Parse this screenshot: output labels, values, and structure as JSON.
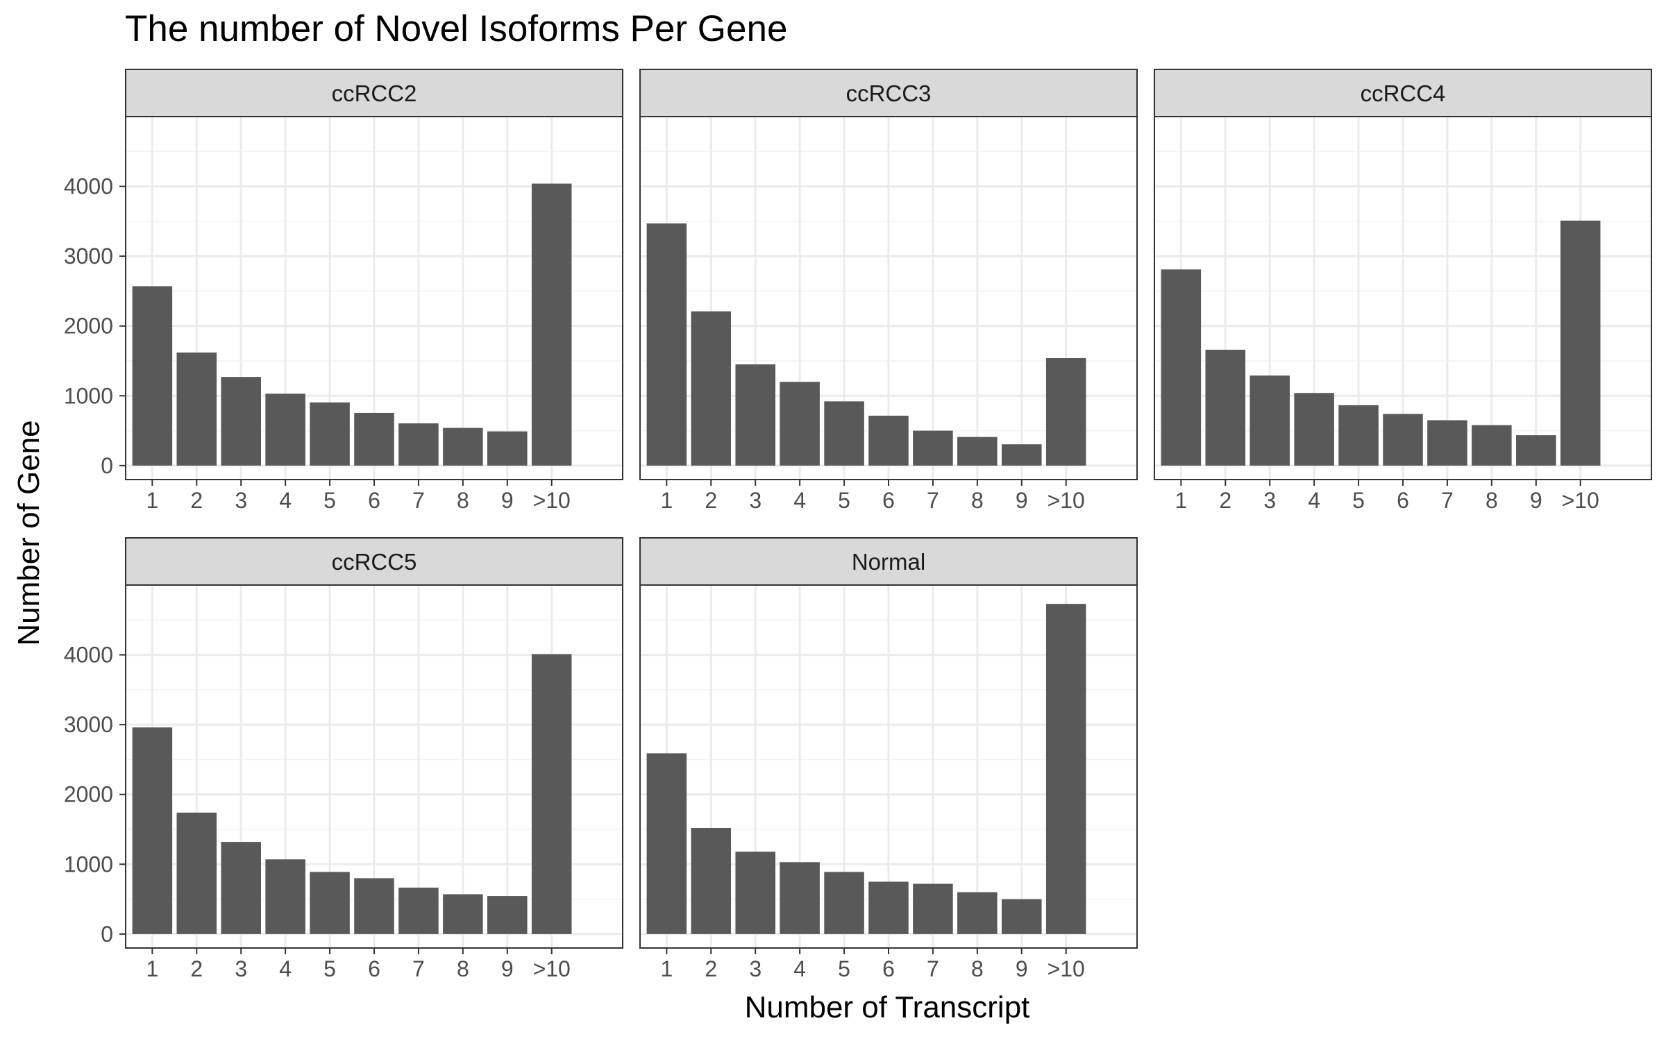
{
  "chart_data": {
    "type": "bar",
    "title": "The number of Novel Isoforms Per Gene",
    "xlabel": "Number of Transcript",
    "ylabel": "Number of Gene",
    "categories": [
      "1",
      "2",
      "3",
      "4",
      "5",
      "6",
      "7",
      "8",
      "9",
      ">10"
    ],
    "ylim": [
      -200,
      5000
    ],
    "yticks": [
      0,
      1000,
      2000,
      3000,
      4000
    ],
    "grid": true,
    "bar_color": "#595959",
    "strip_color": "#d9d9d9",
    "panels": [
      {
        "name": "ccRCC2",
        "values": [
          2570,
          1620,
          1270,
          1030,
          905,
          755,
          605,
          540,
          490,
          4040
        ]
      },
      {
        "name": "ccRCC3",
        "values": [
          3470,
          2210,
          1450,
          1200,
          920,
          715,
          500,
          410,
          305,
          1540
        ]
      },
      {
        "name": "ccRCC4",
        "values": [
          2810,
          1660,
          1290,
          1040,
          865,
          740,
          650,
          580,
          435,
          3510
        ]
      },
      {
        "name": "ccRCC5",
        "values": [
          2960,
          1740,
          1320,
          1070,
          890,
          800,
          665,
          570,
          545,
          4010
        ]
      },
      {
        "name": "Normal",
        "values": [
          2590,
          1520,
          1180,
          1030,
          890,
          750,
          720,
          600,
          500,
          4730
        ]
      }
    ]
  }
}
